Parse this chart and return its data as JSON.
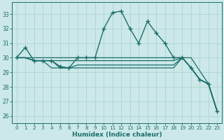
{
  "xlabel": "Humidex (Indice chaleur)",
  "bg_color": "#cce8e8",
  "line_color": "#1a6e6a",
  "grid_color": "#aacfcf",
  "xlim": [
    -0.5,
    23.5
  ],
  "ylim": [
    25.5,
    33.8
  ],
  "yticks": [
    26,
    27,
    28,
    29,
    30,
    31,
    32,
    33
  ],
  "xticks": [
    0,
    1,
    2,
    3,
    4,
    5,
    6,
    7,
    8,
    9,
    10,
    11,
    12,
    13,
    14,
    15,
    16,
    17,
    18,
    19,
    20,
    21,
    22,
    23
  ],
  "lines": [
    {
      "x": [
        0,
        1,
        2,
        3,
        4,
        5,
        6,
        7,
        8,
        9,
        10,
        11,
        12,
        13,
        14,
        15,
        16,
        17,
        18,
        19,
        20,
        21,
        22,
        23
      ],
      "y": [
        30.0,
        30.7,
        29.8,
        29.8,
        29.8,
        29.4,
        29.3,
        30.0,
        30.0,
        30.0,
        32.0,
        33.1,
        33.2,
        32.0,
        31.0,
        32.5,
        31.7,
        31.0,
        30.0,
        30.0,
        29.3,
        28.5,
        28.2,
        26.3
      ],
      "marker": "+",
      "linewidth": 1.0,
      "markersize": 4
    },
    {
      "x": [
        0,
        1,
        2,
        3,
        4,
        5,
        6,
        7,
        8,
        9,
        10,
        11,
        12,
        13,
        14,
        15,
        16,
        17,
        18,
        19,
        20,
        21,
        22,
        23
      ],
      "y": [
        30.0,
        30.0,
        29.8,
        29.8,
        29.8,
        29.8,
        29.8,
        29.8,
        29.8,
        29.8,
        29.8,
        29.8,
        29.8,
        29.8,
        29.8,
        29.8,
        29.8,
        29.8,
        29.8,
        30.0,
        29.3,
        28.5,
        28.2,
        26.3
      ],
      "marker": null,
      "linewidth": 0.9,
      "markersize": 0
    },
    {
      "x": [
        0,
        1,
        2,
        3,
        4,
        5,
        6,
        7,
        8,
        9,
        10,
        11,
        12,
        13,
        14,
        15,
        16,
        17,
        18,
        19,
        20,
        21,
        22,
        23
      ],
      "y": [
        30.0,
        30.0,
        29.8,
        29.8,
        29.8,
        29.3,
        29.3,
        29.5,
        29.5,
        29.5,
        29.5,
        29.5,
        29.5,
        29.5,
        29.5,
        29.5,
        29.5,
        29.5,
        29.5,
        30.0,
        29.3,
        28.5,
        28.2,
        26.3
      ],
      "marker": null,
      "linewidth": 0.9,
      "markersize": 0
    },
    {
      "x": [
        0,
        1,
        2,
        3,
        4,
        5,
        6,
        7,
        8,
        9,
        10,
        11,
        12,
        13,
        14,
        15,
        16,
        17,
        18,
        19,
        20,
        21,
        22,
        23
      ],
      "y": [
        30.0,
        30.0,
        29.8,
        29.8,
        29.3,
        29.3,
        29.3,
        29.3,
        29.3,
        29.3,
        29.3,
        29.3,
        29.3,
        29.3,
        29.3,
        29.3,
        29.3,
        29.3,
        29.3,
        30.0,
        29.3,
        28.5,
        28.2,
        26.3
      ],
      "marker": null,
      "linewidth": 0.9,
      "markersize": 0
    },
    {
      "x": [
        0,
        20,
        22,
        23
      ],
      "y": [
        30.0,
        30.0,
        28.2,
        26.3
      ],
      "marker": null,
      "linewidth": 0.9,
      "markersize": 0
    }
  ]
}
